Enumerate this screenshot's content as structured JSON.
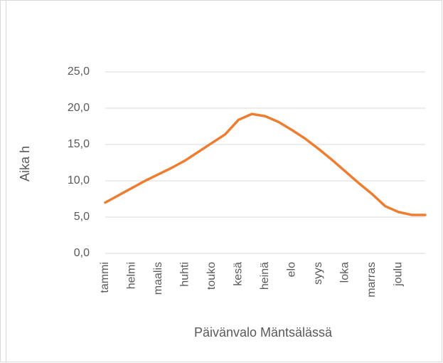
{
  "chart_data": {
    "type": "line",
    "x_label": "Päivänvalo Mäntsälässä",
    "y_label": "Aika h",
    "categories": [
      "tammi",
      null,
      "helmi",
      null,
      "maalis",
      null,
      "huhti",
      null,
      "touko",
      null,
      "kesä",
      null,
      "heinä",
      null,
      "elo",
      null,
      "syys",
      null,
      "loka",
      null,
      "marras",
      null,
      "joulu",
      null,
      null
    ],
    "values": [
      7.0,
      8.0,
      9.0,
      10.0,
      10.9,
      11.8,
      12.8,
      14.0,
      15.2,
      16.4,
      18.4,
      19.2,
      18.9,
      18.1,
      17.0,
      15.8,
      14.4,
      12.9,
      11.3,
      9.7,
      8.2,
      6.5,
      5.7,
      5.3,
      5.3
    ],
    "color": "#ed7d31",
    "ylim": [
      0,
      25
    ],
    "yticks": [
      {
        "value": 0,
        "label": "0,0"
      },
      {
        "value": 5,
        "label": "5,0"
      },
      {
        "value": 10,
        "label": "10,0"
      },
      {
        "value": 15,
        "label": "15,0"
      },
      {
        "value": 20,
        "label": "20,0"
      },
      {
        "value": 25,
        "label": "25,0"
      }
    ],
    "grid": true
  }
}
